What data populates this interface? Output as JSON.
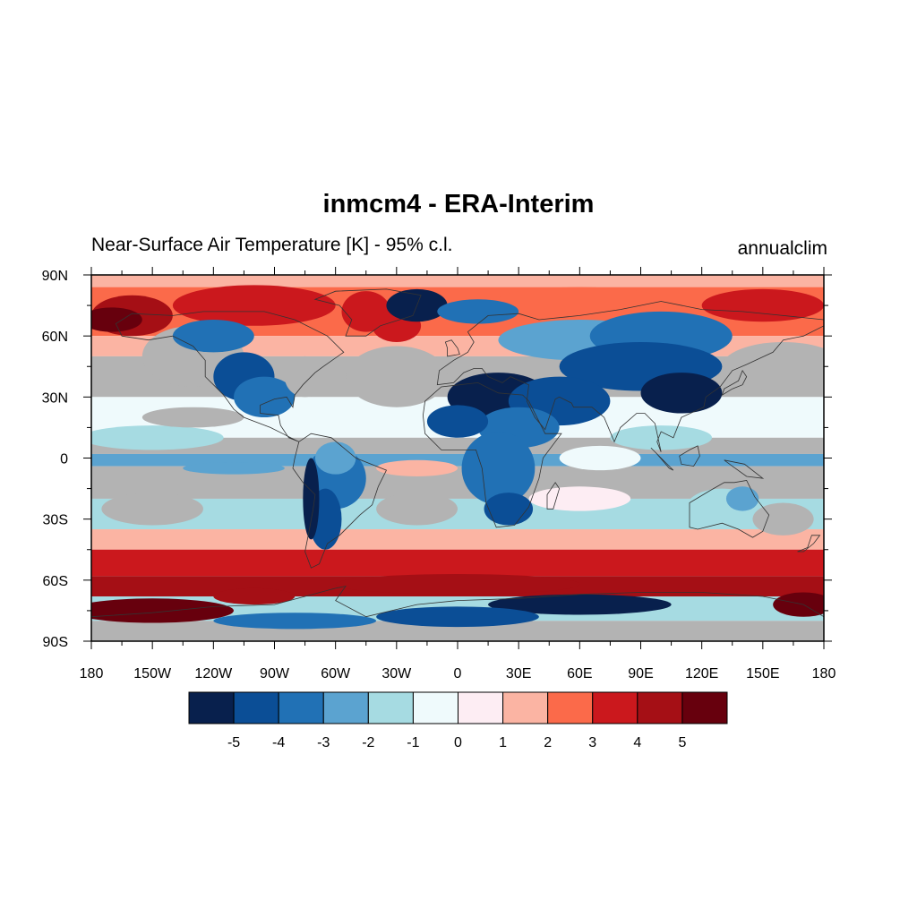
{
  "title": "inmcm4 - ERA-Interim",
  "subtitle_left": "Near-Surface Air Temperature [K] - 95% c.l.",
  "subtitle_right": "annualclim",
  "map": {
    "projection": "equirectangular",
    "lon_range": [
      -180,
      180
    ],
    "lat_range": [
      -90,
      90
    ],
    "non_significant_color": "#b3b3b3",
    "ocean_grid_note": "",
    "lat_ticks": [
      {
        "value": 90,
        "label": "90N"
      },
      {
        "value": 60,
        "label": "60N"
      },
      {
        "value": 30,
        "label": "30N"
      },
      {
        "value": 0,
        "label": "0"
      },
      {
        "value": -30,
        "label": "30S"
      },
      {
        "value": -60,
        "label": "60S"
      },
      {
        "value": -90,
        "label": "90S"
      }
    ],
    "lon_ticks": [
      {
        "value": -180,
        "label": "180"
      },
      {
        "value": -150,
        "label": "150W"
      },
      {
        "value": -120,
        "label": "120W"
      },
      {
        "value": -90,
        "label": "90W"
      },
      {
        "value": -60,
        "label": "60W"
      },
      {
        "value": -30,
        "label": "30W"
      },
      {
        "value": 0,
        "label": "0"
      },
      {
        "value": 30,
        "label": "30E"
      },
      {
        "value": 60,
        "label": "60E"
      },
      {
        "value": 90,
        "label": "90E"
      },
      {
        "value": 120,
        "label": "120E"
      },
      {
        "value": 150,
        "label": "150E"
      },
      {
        "value": 180,
        "label": "180"
      }
    ]
  },
  "colorbar": {
    "colors": [
      "#08204d",
      "#0b4e96",
      "#2171b5",
      "#5ba3d0",
      "#a6dbe2",
      "#effafc",
      "#fdedf3",
      "#fbb4a3",
      "#fb6a4a",
      "#cb181d",
      "#a50f15",
      "#67000d"
    ],
    "labels": [
      "-5",
      "-4",
      "-3",
      "-2",
      "-1",
      "0",
      "1",
      "2",
      "3",
      "4",
      "5"
    ]
  }
}
